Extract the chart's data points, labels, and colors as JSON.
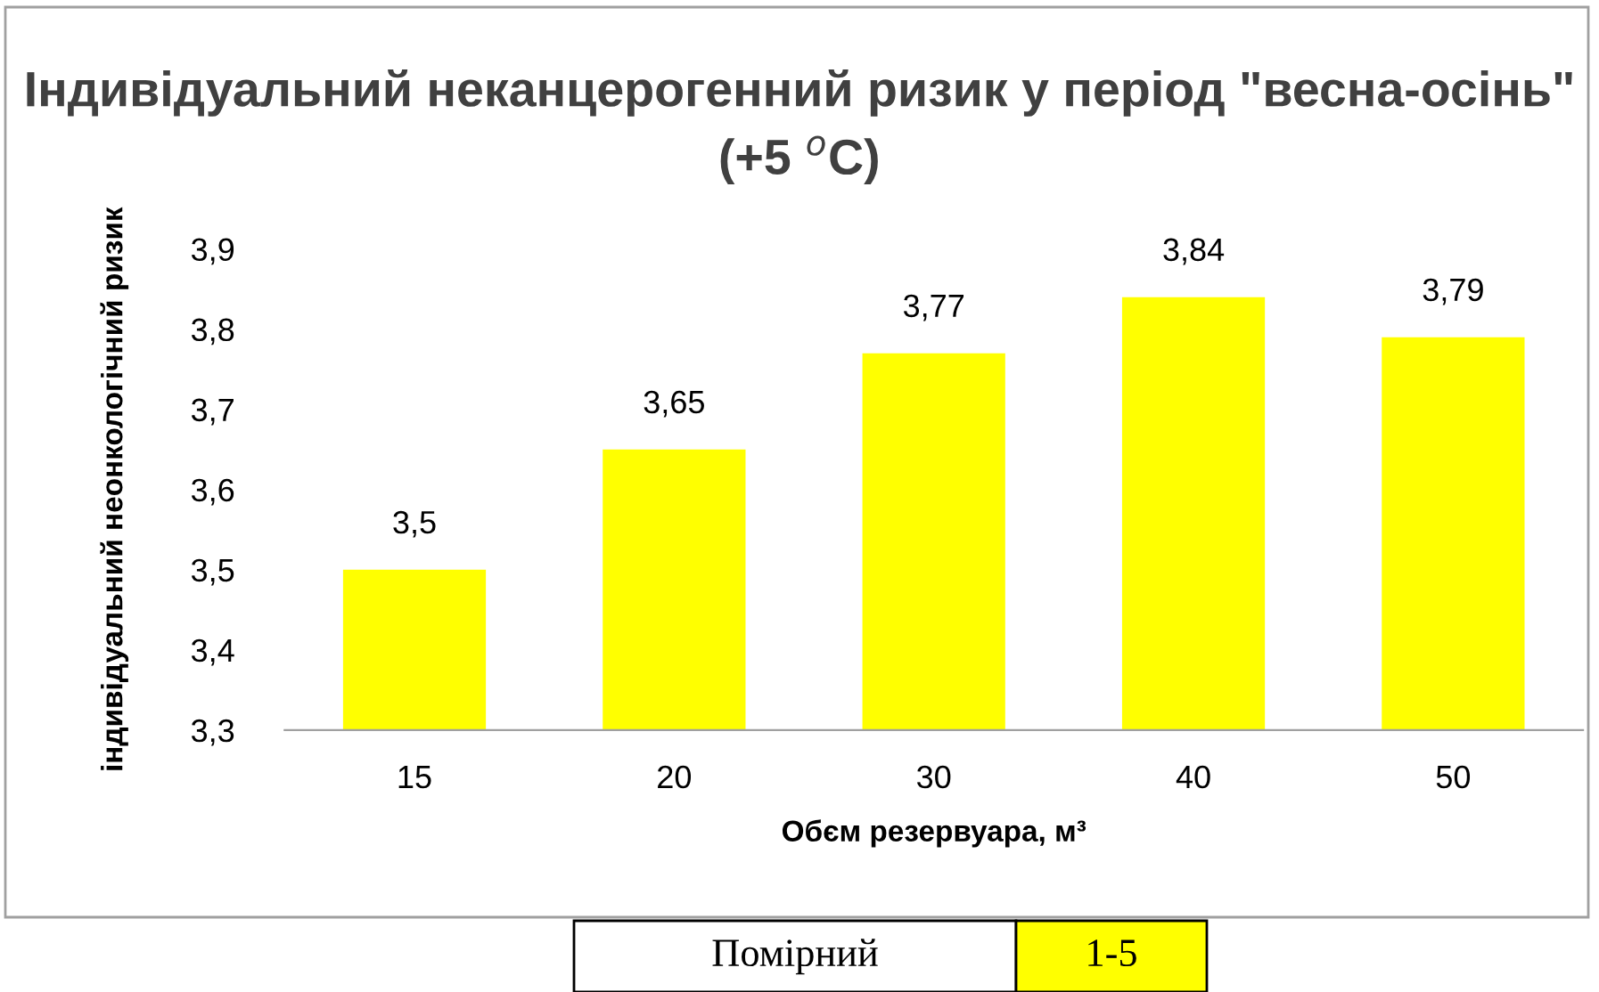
{
  "chart_data": {
    "type": "bar",
    "title": "Індивідуальний неканцерогенний ризик у період \"весна-осінь\" (+5 $^{o}$С)",
    "xlabel": "Обєм резервуара, м³",
    "ylabel": "індивідуальний неонкологічний ризик",
    "categories": [
      "15",
      "20",
      "30",
      "40",
      "50"
    ],
    "values": [
      3.5,
      3.65,
      3.77,
      3.84,
      3.79
    ],
    "value_labels": [
      "3,5",
      "3,65",
      "3,77",
      "3,84",
      "3,79"
    ],
    "color": "#ffff00",
    "ylim": [
      3.3,
      3.9
    ],
    "yticks": [
      {
        "value": 3.3,
        "label": "3,3"
      },
      {
        "value": 3.4,
        "label": "3,4"
      },
      {
        "value": 3.5,
        "label": "3,5"
      },
      {
        "value": 3.6,
        "label": "3,6"
      },
      {
        "value": 3.7,
        "label": "3,7"
      },
      {
        "value": 3.8,
        "label": "3,8"
      },
      {
        "value": 3.9,
        "label": "3,9"
      }
    ],
    "grid": false,
    "legend": false,
    "annotations": [
      "Помірний",
      "1-5"
    ]
  }
}
